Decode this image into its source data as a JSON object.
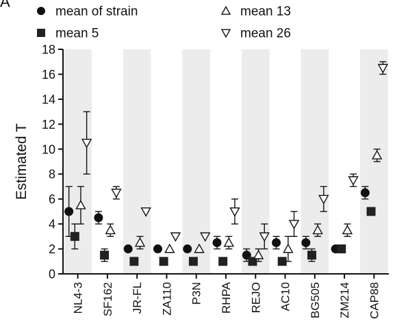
{
  "panel_label": "A",
  "legend": {
    "items": [
      {
        "label": "mean of strain",
        "marker": "circle"
      },
      {
        "label": "mean 13",
        "marker": "triangle-up"
      },
      {
        "label": "mean 5",
        "marker": "square"
      },
      {
        "label": "mean 26",
        "marker": "triangle-down"
      }
    ]
  },
  "chart_data": {
    "type": "scatter",
    "ylabel": "Estimated T",
    "xlabel": "",
    "ylim": [
      0,
      18
    ],
    "yticks": [
      0,
      2,
      4,
      6,
      8,
      10,
      12,
      14,
      16,
      18
    ],
    "grid": false,
    "background_bands": "alternate strains shaded light gray",
    "categories": [
      "NL4-3",
      "SF162",
      "JR-FL",
      "ZA110",
      "P3N",
      "RHPA",
      "REJO",
      "AC10",
      "BG505",
      "ZM214",
      "CAP88"
    ],
    "series": [
      {
        "name": "mean of strain",
        "marker": "circle",
        "values": [
          5,
          4.5,
          2,
          2,
          2,
          2.5,
          1.5,
          2.5,
          2.5,
          2,
          6.5
        ],
        "errors": [
          2,
          0.5,
          0,
          0,
          0,
          0.5,
          0.5,
          0.5,
          0.5,
          0,
          0.5
        ]
      },
      {
        "name": "mean 5",
        "marker": "square",
        "values": [
          3,
          1.5,
          1,
          1,
          1,
          1,
          1,
          1,
          1.5,
          2,
          5
        ],
        "errors": [
          1,
          0.5,
          0,
          0,
          0,
          0,
          0,
          0,
          0.5,
          0,
          0
        ]
      },
      {
        "name": "mean 13",
        "marker": "triangle-up",
        "values": [
          5.5,
          3.5,
          2.5,
          2,
          2,
          2.5,
          1.5,
          2,
          3.5,
          3.5,
          9.5
        ],
        "errors": [
          1.5,
          0.5,
          0.5,
          0,
          0,
          0.5,
          0.5,
          1,
          0.5,
          0.5,
          0.5
        ]
      },
      {
        "name": "mean 26",
        "marker": "triangle-down",
        "values": [
          10.5,
          6.5,
          5,
          3,
          3,
          5,
          3,
          4,
          6,
          7.5,
          16.5
        ],
        "errors": [
          2.5,
          0.5,
          0,
          0,
          0,
          1,
          1,
          1,
          1,
          0.5,
          0.5
        ]
      }
    ]
  }
}
